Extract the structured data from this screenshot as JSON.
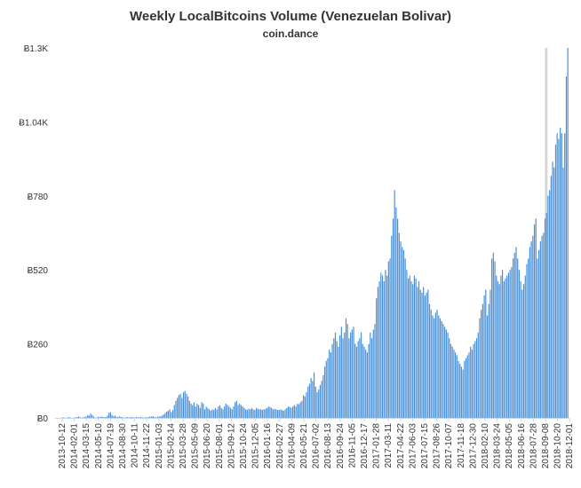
{
  "chart_data": {
    "type": "bar",
    "title": "Weekly LocalBitcoins Volume (Venezuelan Bolivar)",
    "subtitle": "coin.dance",
    "xlabel": "",
    "ylabel": "",
    "ylim": [
      0,
      1300
    ],
    "y_ticks": [
      0,
      260,
      520,
      780,
      1040,
      1300
    ],
    "y_tick_labels": [
      "Ƀ0",
      "Ƀ260",
      "Ƀ520",
      "Ƀ780",
      "Ƀ1.04K",
      "Ƀ1.3K"
    ],
    "x_tick_labels": [
      "2013-10-12",
      "2014-02-01",
      "2014-03-15",
      "2014-05-10",
      "2014-07-19",
      "2014-08-30",
      "2014-10-11",
      "2014-11-22",
      "2015-01-03",
      "2015-02-14",
      "2015-03-28",
      "2015-05-09",
      "2015-06-20",
      "2015-08-01",
      "2015-09-12",
      "2015-10-24",
      "2015-12-05",
      "2016-01-16",
      "2016-02-27",
      "2016-04-09",
      "2016-05-21",
      "2016-07-02",
      "2016-08-13",
      "2016-09-24",
      "2016-11-05",
      "2016-12-17",
      "2017-01-28",
      "2017-03-11",
      "2017-04-22",
      "2017-06-03",
      "2017-07-15",
      "2017-08-26",
      "2017-10-07",
      "2017-11-18",
      "2017-12-30",
      "2018-02-10",
      "2018-03-24",
      "2018-05-05",
      "2018-06-16",
      "2018-07-28",
      "2018-09-08",
      "2018-10-20",
      "2018-12-01"
    ],
    "grid": false,
    "bar_color": "#4a90d9",
    "values": [
      0,
      0,
      0,
      0,
      1,
      2,
      1,
      0,
      3,
      2,
      1,
      0,
      1,
      2,
      3,
      5,
      2,
      1,
      2,
      3,
      5,
      10,
      8,
      15,
      10,
      5,
      0,
      2,
      4,
      2,
      5,
      3,
      2,
      3,
      8,
      18,
      20,
      10,
      6,
      8,
      3,
      4,
      5,
      3,
      2,
      1,
      2,
      3,
      2,
      2,
      3,
      2,
      1,
      3,
      2,
      2,
      3,
      2,
      1,
      2,
      2,
      3,
      5,
      4,
      6,
      3,
      2,
      4,
      5,
      6,
      8,
      12,
      18,
      22,
      25,
      30,
      20,
      28,
      45,
      60,
      70,
      80,
      85,
      70,
      90,
      95,
      85,
      75,
      60,
      50,
      45,
      55,
      40,
      50,
      45,
      35,
      55,
      50,
      30,
      40,
      35,
      30,
      25,
      30,
      28,
      35,
      30,
      40,
      45,
      35,
      30,
      40,
      50,
      45,
      40,
      35,
      30,
      40,
      55,
      60,
      45,
      50,
      45,
      40,
      35,
      30,
      28,
      32,
      30,
      35,
      30,
      28,
      35,
      32,
      30,
      30,
      28,
      30,
      32,
      35,
      40,
      38,
      35,
      30,
      32,
      30,
      28,
      28,
      30,
      28,
      25,
      30,
      35,
      40,
      38,
      35,
      40,
      45,
      40,
      50,
      48,
      55,
      60,
      80,
      75,
      90,
      110,
      120,
      140,
      130,
      160,
      110,
      90,
      100,
      115,
      130,
      150,
      180,
      200,
      210,
      240,
      230,
      260,
      280,
      300,
      270,
      250,
      290,
      320,
      280,
      300,
      350,
      330,
      280,
      300,
      310,
      320,
      260,
      250,
      270,
      280,
      300,
      260,
      250,
      240,
      230,
      260,
      300,
      280,
      310,
      330,
      420,
      460,
      480,
      510,
      500,
      480,
      520,
      500,
      550,
      560,
      640,
      700,
      800,
      740,
      700,
      650,
      620,
      600,
      590,
      560,
      520,
      490,
      500,
      480,
      470,
      500,
      490,
      460,
      480,
      450,
      440,
      460,
      430,
      440,
      450,
      400,
      380,
      360,
      350,
      370,
      380,
      360,
      350,
      340,
      330,
      320,
      310,
      300,
      280,
      260,
      250,
      240,
      230,
      220,
      200,
      190,
      180,
      170,
      200,
      210,
      220,
      230,
      250,
      240,
      260,
      270,
      280,
      300,
      350,
      380,
      400,
      430,
      450,
      360,
      400,
      450,
      560,
      580,
      550,
      500,
      480,
      470,
      500,
      520,
      480,
      490,
      500,
      510,
      520,
      530,
      560,
      580,
      600,
      560,
      520,
      480,
      450,
      470,
      500,
      540,
      560,
      600,
      620,
      640,
      680,
      700,
      560,
      590,
      620,
      640,
      650,
      700,
      720,
      780,
      800,
      850,
      900,
      880,
      960,
      1000,
      980,
      1020,
      1000,
      880,
      1000,
      1200,
      1300
    ],
    "highlight_index": 323
  }
}
